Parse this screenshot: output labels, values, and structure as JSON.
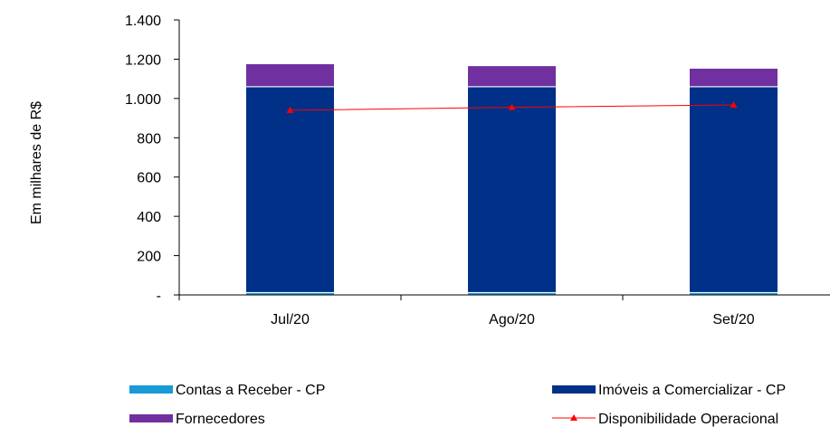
{
  "chart_data": {
    "type": "bar",
    "stacked": true,
    "categories": [
      "Jul/20",
      "Ago/20",
      "Set/20"
    ],
    "ylabel": "Em milhares de R$",
    "ylim": [
      0,
      1400
    ],
    "yticks": [
      0,
      200,
      400,
      600,
      800,
      1000,
      1200,
      1400
    ],
    "ytick_labels": [
      "-",
      "200",
      "400",
      "600",
      "800",
      "1.000",
      "1.200",
      "1.400"
    ],
    "series": [
      {
        "name": "Contas a Receber  - CP",
        "kind": "bar",
        "color": "#1a9ad6",
        "values": [
          12,
          12,
          12
        ]
      },
      {
        "name": "Imóveis a Comercializar - CP",
        "kind": "bar",
        "color": "#003087",
        "values": [
          1048,
          1048,
          1048
        ]
      },
      {
        "name": "Fornecedores",
        "kind": "bar",
        "color": "#7030a0",
        "values": [
          117,
          107,
          94
        ]
      },
      {
        "name": "Disponibilidade Operacional",
        "kind": "line",
        "color": "#ff0000",
        "values": [
          940,
          955,
          967
        ]
      }
    ],
    "legend_position": "bottom",
    "grid": false
  }
}
